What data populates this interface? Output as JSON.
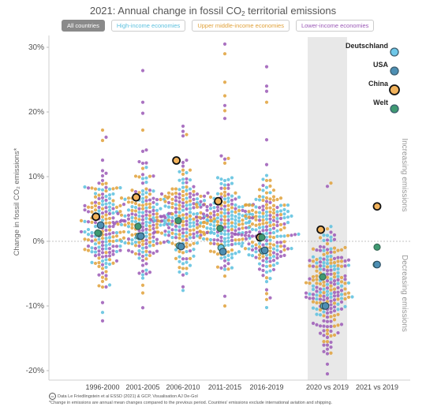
{
  "page": {
    "title_main": "2021: Annual change in fossil CO",
    "title_sub": "2",
    "title_end": " territorial emissions",
    "footer_source": "Data Le Friedlingstein et al ESSD (2021) & GCP, Visualisation AJ De-Gol",
    "footer_note": "*Change in emissions are annual mean changes compared to the previous period. Countries' emissions exclude international aviation and shipping.",
    "cc_label": "cc"
  },
  "filters": [
    {
      "label": "All countries",
      "active": true,
      "color": "#8a8a8a"
    },
    {
      "label": "High-income economies",
      "active": false,
      "color": "#5bc0de"
    },
    {
      "label": "Upper middle-income economies",
      "active": false,
      "color": "#e0a13a"
    },
    {
      "label": "Lower-income economies",
      "active": false,
      "color": "#9b59b6"
    }
  ],
  "colors": {
    "high_income": "#5bc0de",
    "upper_middle": "#e0a13a",
    "lower_income": "#9b59b6",
    "germany": "#6ec7e8",
    "usa": "#4d8fb3",
    "china": "#f2b35c",
    "world": "#3f9a72",
    "highlight": "#e8e8e8"
  },
  "legend": [
    {
      "label": "Deutschland",
      "key": "germany"
    },
    {
      "label": "USA",
      "key": "usa"
    },
    {
      "label": "China",
      "key": "china"
    },
    {
      "label": "Welt",
      "key": "world"
    }
  ],
  "chart_data": {
    "type": "scatter",
    "ylabel": "Change in fossil CO₂ emissions*",
    "ylim": [
      -21,
      31
    ],
    "yticks": [
      30,
      20,
      10,
      0,
      -10,
      -20
    ],
    "ytick_labels": [
      "30%",
      "20%",
      "10%",
      "0%",
      "-10%",
      "-20%"
    ],
    "grid": false,
    "annotation_up": "Increasing emissions",
    "annotation_down": "Decreasing emissions",
    "highlighted_category": "2020 vs 2019",
    "categories": [
      "1996-2000",
      "2001-2005",
      "2006-2010",
      "2011-2015",
      "2016-2019",
      "2020 vs 2019",
      "2021 vs 2019"
    ],
    "distributions": [
      {
        "category": "1996-2000",
        "n": 190,
        "mean": 1.8,
        "sd": 4.3
      },
      {
        "category": "2001-2005",
        "n": 200,
        "mean": 3.3,
        "sd": 3.9
      },
      {
        "category": "2006-2010",
        "n": 205,
        "mean": 3.2,
        "sd": 4.0
      },
      {
        "category": "2011-2015",
        "n": 210,
        "mean": 2.6,
        "sd": 3.8
      },
      {
        "category": "2016-2019",
        "n": 205,
        "mean": 1.9,
        "sd": 3.6
      },
      {
        "category": "2020 vs 2019",
        "n": 220,
        "mean": -7.5,
        "sd": 4.4
      },
      {
        "category": "2021 vs 2019",
        "n": 0,
        "mean": 0,
        "sd": 0
      }
    ],
    "outliers": [
      {
        "category": "1996-2000",
        "values": [
          17.2,
          16.1,
          15.6,
          -11.0,
          -12.3
        ]
      },
      {
        "category": "2001-2005",
        "values": [
          26.4,
          21.5,
          19.8,
          17.2,
          -6.8
        ]
      },
      {
        "category": "2006-2010",
        "values": [
          17.8,
          17.0,
          16.5,
          -7.6
        ]
      },
      {
        "category": "2011-2015",
        "values": [
          30.5,
          29.0,
          24.6,
          22.5,
          21.0,
          20.2,
          19.0,
          -10.0,
          -8.5
        ]
      },
      {
        "category": "2016-2019",
        "values": [
          27.0,
          24.0,
          23.2,
          21.5,
          15.7,
          -7.5,
          -9.0
        ]
      },
      {
        "category": "2020 vs 2019",
        "values": [
          9.0,
          8.5,
          -20.5,
          -19.0
        ]
      }
    ],
    "series": [
      {
        "name": "Deutschland",
        "key": "germany",
        "values": [
          1.2,
          0.8,
          -0.7,
          -1.0,
          -1.5,
          -10.0,
          -3.6
        ]
      },
      {
        "name": "USA",
        "key": "usa",
        "values": [
          2.5,
          0.8,
          -0.8,
          -1.6,
          -1.4,
          -10.0,
          -3.6
        ]
      },
      {
        "name": "China",
        "key": "china",
        "values": [
          3.8,
          6.8,
          12.5,
          6.2,
          0.6,
          1.8,
          5.4
        ]
      },
      {
        "name": "Welt",
        "key": "world",
        "values": [
          1.3,
          2.3,
          3.2,
          2.0,
          0.6,
          -5.5,
          -0.9
        ]
      }
    ]
  }
}
